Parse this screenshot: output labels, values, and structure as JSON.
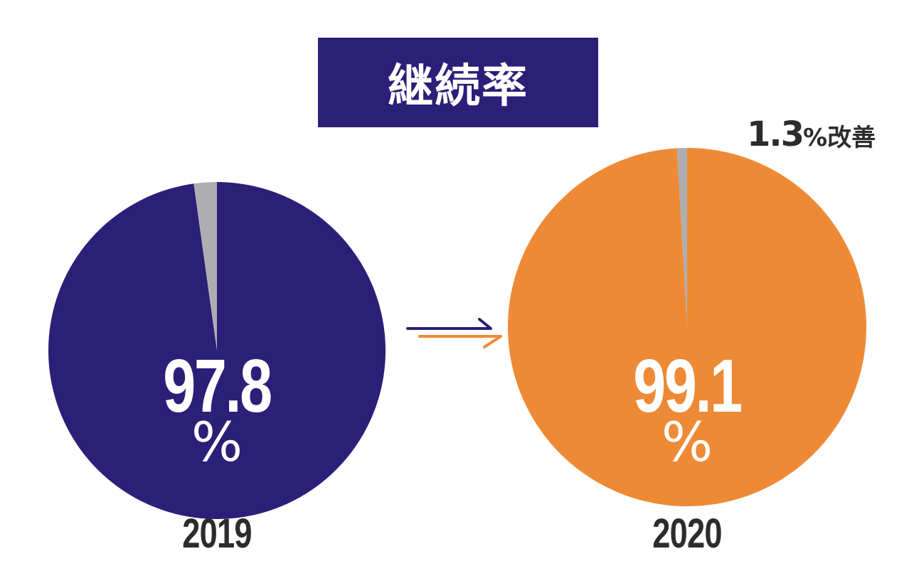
{
  "title": "継続率",
  "annotation": {
    "value": "1.3",
    "text": "%改善"
  },
  "colors": {
    "navy": "#2b1f78",
    "orange": "#ee8a35",
    "gray": "#aeaeb0",
    "text_dark": "#2c2c2c"
  },
  "chart_data": [
    {
      "type": "pie",
      "label": "2019",
      "value": 97.8,
      "unit": "%",
      "display_value": "97.8",
      "slices": [
        {
          "value": 97.8,
          "color": "#2b1f78"
        },
        {
          "value": 2.2,
          "color": "#aeaeb0"
        }
      ]
    },
    {
      "type": "pie",
      "label": "2020",
      "value": 99.1,
      "unit": "%",
      "display_value": "99.1",
      "slices": [
        {
          "value": 99.1,
          "color": "#ee8a35"
        },
        {
          "value": 0.9,
          "color": "#aeaeb0"
        }
      ]
    }
  ]
}
